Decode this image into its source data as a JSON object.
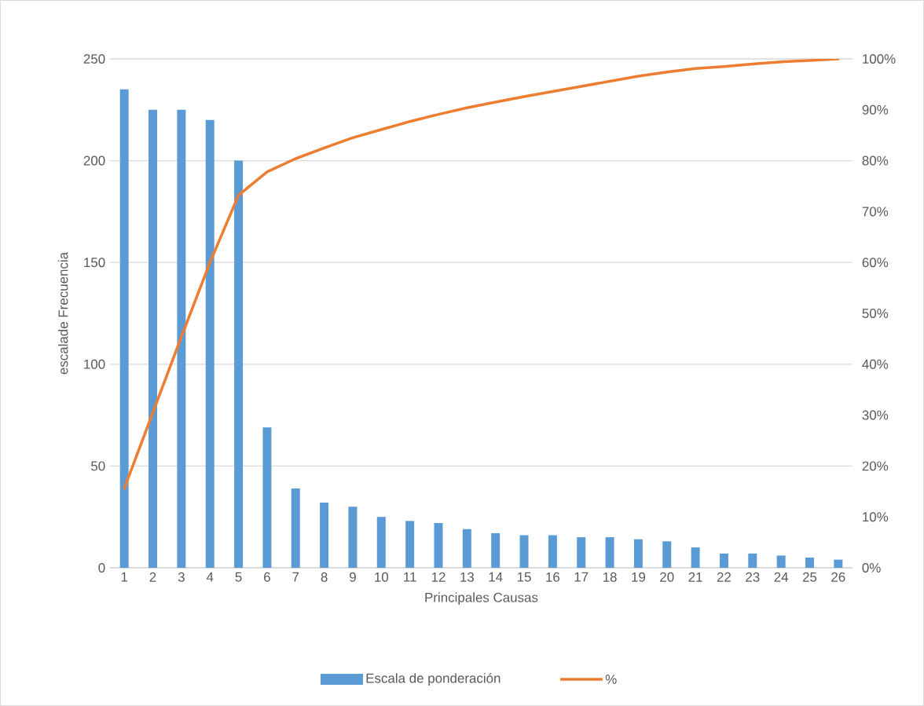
{
  "chart_data": {
    "type": "bar",
    "xlabel": "Principales Causas",
    "ylabel": "escalade Frecuencia",
    "categories": [
      "1",
      "2",
      "3",
      "4",
      "5",
      "6",
      "7",
      "8",
      "9",
      "10",
      "11",
      "12",
      "13",
      "14",
      "15",
      "16",
      "17",
      "18",
      "19",
      "20",
      "21",
      "22",
      "23",
      "24",
      "25",
      "26"
    ],
    "series": [
      {
        "name": "Escala de ponderación",
        "color": "#5b9bd5",
        "values": [
          235,
          225,
          225,
          220,
          200,
          69,
          39,
          32,
          30,
          25,
          23,
          22,
          19,
          17,
          16,
          16,
          15,
          15,
          14,
          13,
          10,
          7,
          7,
          6,
          5,
          4
        ]
      },
      {
        "name": "%",
        "type": "line",
        "axis": "y2",
        "color": "#ed7d31",
        "values": [
          15.6,
          30.5,
          45.4,
          60.0,
          73.2,
          77.8,
          80.4,
          82.5,
          84.5,
          86.1,
          87.7,
          89.1,
          90.4,
          91.5,
          92.6,
          93.6,
          94.6,
          95.6,
          96.6,
          97.4,
          98.1,
          98.5,
          99.0,
          99.4,
          99.7,
          100
        ]
      }
    ],
    "ylim": [
      0,
      250
    ],
    "yticks": [
      0,
      50,
      100,
      150,
      200,
      250
    ],
    "y2lim": [
      0,
      100
    ],
    "y2ticks": [
      {
        "value": 0,
        "label": "0%"
      },
      {
        "value": 10,
        "label": "10%"
      },
      {
        "value": 20,
        "label": "20%"
      },
      {
        "value": 30,
        "label": "30%"
      },
      {
        "value": 40,
        "label": "40%"
      },
      {
        "value": 50,
        "label": "50%"
      },
      {
        "value": 60,
        "label": "60%"
      },
      {
        "value": 70,
        "label": "70%"
      },
      {
        "value": 80,
        "label": "80%"
      },
      {
        "value": 90,
        "label": "90%"
      },
      {
        "value": 100,
        "label": "100%"
      }
    ],
    "grid": "y",
    "legend": "bottom",
    "marker": "none"
  }
}
